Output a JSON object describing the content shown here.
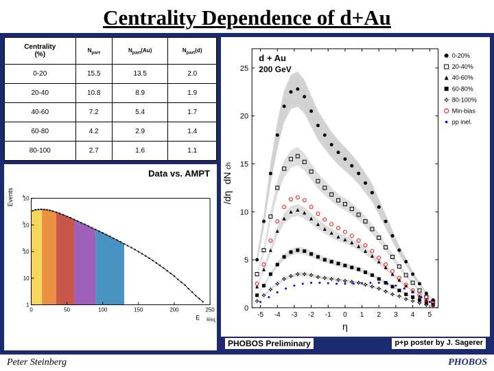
{
  "title": "Centrality Dependence of d+Au",
  "table": {
    "columns": [
      "Centrality (%)",
      "Npart",
      "Npart(Au)",
      "Npart(d)"
    ],
    "rows": [
      [
        "0-20",
        "15.5",
        "13.5",
        "2.0"
      ],
      [
        "20-40",
        "10.8",
        "8.9",
        "1.9"
      ],
      [
        "40-60",
        "7.2",
        "5.4",
        "1.7"
      ],
      [
        "60-80",
        "4.2",
        "2.9",
        "1.4"
      ],
      [
        "80-100",
        "2.7",
        "1.6",
        "1.1"
      ]
    ]
  },
  "small_chart": {
    "title": "Data vs. AMPT",
    "xlabel": "ERing",
    "ylabel": "Events",
    "xlim": [
      0,
      250
    ],
    "xtick_step": 50,
    "ylog": true,
    "ylim": [
      1,
      10000
    ],
    "band_colors": [
      "#f4d03f",
      "#e67e22",
      "#c0392b",
      "#8e44ad",
      "#2980b9"
    ],
    "band_edges": [
      0,
      15,
      35,
      60,
      90,
      130
    ],
    "curve": [
      [
        2,
        3400
      ],
      [
        6,
        3700
      ],
      [
        10,
        3800
      ],
      [
        14,
        3850
      ],
      [
        18,
        3800
      ],
      [
        22,
        3700
      ],
      [
        26,
        3500
      ],
      [
        30,
        3300
      ],
      [
        35,
        3000
      ],
      [
        40,
        2700
      ],
      [
        45,
        2400
      ],
      [
        50,
        2100
      ],
      [
        55,
        1850
      ],
      [
        60,
        1600
      ],
      [
        65,
        1400
      ],
      [
        70,
        1200
      ],
      [
        75,
        1050
      ],
      [
        80,
        900
      ],
      [
        85,
        780
      ],
      [
        90,
        670
      ],
      [
        95,
        580
      ],
      [
        100,
        500
      ],
      [
        105,
        430
      ],
      [
        110,
        370
      ],
      [
        115,
        315
      ],
      [
        120,
        270
      ],
      [
        125,
        230
      ],
      [
        130,
        195
      ],
      [
        135,
        165
      ],
      [
        140,
        140
      ],
      [
        145,
        118
      ],
      [
        150,
        98
      ],
      [
        155,
        82
      ],
      [
        160,
        68
      ],
      [
        165,
        56
      ],
      [
        170,
        46
      ],
      [
        175,
        37
      ],
      [
        180,
        30
      ],
      [
        185,
        24
      ],
      [
        190,
        19
      ],
      [
        195,
        15
      ],
      [
        200,
        12
      ],
      [
        205,
        9
      ],
      [
        210,
        7
      ],
      [
        215,
        5.5
      ],
      [
        220,
        4
      ],
      [
        225,
        3
      ],
      [
        230,
        2.2
      ],
      [
        235,
        1.7
      ],
      [
        240,
        1.3
      ]
    ],
    "background_color": "#ffffff"
  },
  "main_chart": {
    "type": "scatter-band",
    "top_left_label": "d + Au",
    "top_left_sublabel": "200 GeV",
    "ylabel": "dNch/dη",
    "xlabel": "η",
    "xlim": [
      -5.5,
      5.5
    ],
    "xtick_step": 1,
    "ylim": [
      0,
      27
    ],
    "ytick_step": 5,
    "background_color": "#ffffff",
    "grid_color": "#ffffff",
    "axis_color": "#000000",
    "marker_size": 2.5,
    "legend": [
      {
        "label": "0-20%",
        "marker": "circle-filled",
        "color": "#000000"
      },
      {
        "label": "20-40%",
        "marker": "square-open",
        "color": "#000000"
      },
      {
        "label": "40-60%",
        "marker": "triangle-filled",
        "color": "#000000"
      },
      {
        "label": "60-80%",
        "marker": "square-filled",
        "color": "#000000"
      },
      {
        "label": "80-100%",
        "marker": "star-open",
        "color": "#000000"
      },
      {
        "label": "Min-bias",
        "marker": "circle-open",
        "color": "#ff0000"
      },
      {
        "label": "pp inel.",
        "marker": "dot",
        "color": "#0000ff"
      }
    ],
    "band_fill": "#d0d0d0",
    "band_shadow": "#b0b0b0",
    "series": {
      "s0_20": {
        "color": "#000000",
        "marker": "circle-filled",
        "eta": [
          -5.2,
          -4.8,
          -4.4,
          -4.0,
          -3.6,
          -3.2,
          -2.8,
          -2.4,
          -2.0,
          -1.6,
          -1.2,
          -0.8,
          -0.4,
          0,
          0.4,
          0.8,
          1.2,
          1.6,
          2.0,
          2.4,
          2.8,
          3.2,
          3.6,
          4.0,
          4.4,
          4.8,
          5.2
        ],
        "y": [
          5,
          9,
          14,
          18,
          21,
          22.5,
          22.8,
          22,
          20.5,
          19,
          18,
          17,
          16.2,
          15.5,
          14.8,
          14,
          13,
          12,
          10.5,
          9,
          7.5,
          6,
          4.8,
          3.5,
          2.5,
          1.5,
          0.8
        ]
      },
      "s20_40": {
        "color": "#000000",
        "marker": "square-open",
        "eta": [
          -5.2,
          -4.8,
          -4.4,
          -4.0,
          -3.6,
          -3.2,
          -2.8,
          -2.4,
          -2.0,
          -1.6,
          -1.2,
          -0.8,
          -0.4,
          0,
          0.4,
          0.8,
          1.2,
          1.6,
          2.0,
          2.4,
          2.8,
          3.2,
          3.6,
          4.0,
          4.4,
          4.8,
          5.2
        ],
        "y": [
          3.5,
          6,
          9.5,
          12.5,
          14.5,
          15.5,
          15.8,
          15.2,
          14.2,
          13.2,
          12.5,
          11.8,
          11.2,
          10.8,
          10.3,
          9.7,
          9,
          8.2,
          7.3,
          6.3,
          5.3,
          4.3,
          3.4,
          2.6,
          1.8,
          1.1,
          0.6
        ]
      },
      "s40_60": {
        "color": "#000000",
        "marker": "triangle-filled",
        "eta": [
          -5.2,
          -4.8,
          -4.4,
          -4.0,
          -3.6,
          -3.2,
          -2.8,
          -2.4,
          -2.0,
          -1.6,
          -1.2,
          -0.8,
          -0.4,
          0,
          0.4,
          0.8,
          1.2,
          1.6,
          2.0,
          2.4,
          2.8,
          3.2,
          3.6,
          4.0,
          4.4,
          4.8,
          5.2
        ],
        "y": [
          2.2,
          4,
          6,
          8,
          9.3,
          10,
          10.2,
          9.9,
          9.3,
          8.7,
          8.2,
          7.8,
          7.4,
          7.1,
          6.8,
          6.4,
          5.9,
          5.4,
          4.8,
          4.2,
          3.5,
          2.9,
          2.3,
          1.7,
          1.2,
          0.8,
          0.4
        ]
      },
      "s60_80": {
        "color": "#000000",
        "marker": "square-filled",
        "eta": [
          -5.2,
          -4.8,
          -4.4,
          -4.0,
          -3.6,
          -3.2,
          -2.8,
          -2.4,
          -2.0,
          -1.6,
          -1.2,
          -0.8,
          -0.4,
          0,
          0.4,
          0.8,
          1.2,
          1.6,
          2.0,
          2.4,
          2.8,
          3.2,
          3.6,
          4.0,
          4.4,
          4.8,
          5.2
        ],
        "y": [
          1.3,
          2.3,
          3.5,
          4.5,
          5.3,
          5.8,
          6,
          5.9,
          5.6,
          5.3,
          5,
          4.8,
          4.6,
          4.4,
          4.2,
          4,
          3.7,
          3.4,
          3,
          2.6,
          2.2,
          1.8,
          1.4,
          1.1,
          0.8,
          0.5,
          0.3
        ]
      },
      "s80_100": {
        "color": "#000000",
        "marker": "star-open",
        "eta": [
          -5.2,
          -4.8,
          -4.4,
          -4.0,
          -3.6,
          -3.2,
          -2.8,
          -2.4,
          -2.0,
          -1.6,
          -1.2,
          -0.8,
          -0.4,
          0,
          0.4,
          0.8,
          1.2,
          1.6,
          2.0,
          2.4,
          2.8,
          3.2,
          3.6,
          4.0,
          4.4,
          4.8,
          5.2
        ],
        "y": [
          0.7,
          1.3,
          1.9,
          2.5,
          3,
          3.3,
          3.5,
          3.5,
          3.4,
          3.2,
          3.1,
          3,
          2.9,
          2.8,
          2.7,
          2.6,
          2.4,
          2.2,
          2,
          1.7,
          1.4,
          1.2,
          0.9,
          0.7,
          0.5,
          0.3,
          0.2
        ]
      },
      "minbias": {
        "color": "#ff0000",
        "marker": "circle-open",
        "eta": [
          -5.2,
          -4.8,
          -4.4,
          -4.0,
          -3.6,
          -3.2,
          -2.8,
          -2.4,
          -2.0,
          -1.6,
          -1.2,
          -0.8,
          -0.4,
          0,
          0.4,
          0.8,
          1.2,
          1.6,
          2.0,
          2.4,
          2.8,
          3.2,
          3.6,
          4.0,
          4.4,
          4.8,
          5.2
        ],
        "y": [
          2.5,
          4.5,
          7,
          9,
          10.5,
          11.3,
          11.5,
          11.2,
          10.5,
          9.8,
          9.2,
          8.7,
          8.3,
          7.9,
          7.5,
          7,
          6.5,
          5.9,
          5.2,
          4.5,
          3.8,
          3.1,
          2.4,
          1.8,
          1.3,
          0.8,
          0.4
        ]
      },
      "pp": {
        "color": "#0000ff",
        "marker": "dot",
        "eta": [
          -5,
          -4.5,
          -4,
          -3.5,
          -3,
          -2.5,
          -2,
          -1.5,
          -1,
          -0.5,
          0,
          0.5,
          1,
          1.5,
          2,
          2.5,
          3,
          3.5,
          4,
          4.5,
          5
        ],
        "y": [
          0.6,
          1.1,
          1.6,
          2,
          2.3,
          2.5,
          2.6,
          2.6,
          2.55,
          2.5,
          2.5,
          2.5,
          2.55,
          2.6,
          2.6,
          2.5,
          2.3,
          2,
          1.6,
          1.1,
          0.6
        ]
      }
    }
  },
  "prelim_label": "PHOBOS Preliminary",
  "poster_credit": "p+p poster by J. Sagerer",
  "footer_left": "Peter Steinberg",
  "footer_right": "PHOBOS"
}
